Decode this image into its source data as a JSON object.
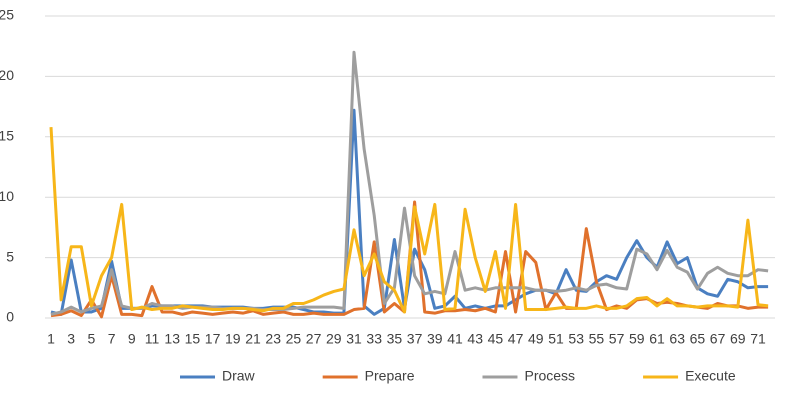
{
  "chart_data": {
    "type": "line",
    "categories": [
      "1",
      null,
      "3",
      null,
      "5",
      null,
      "7",
      null,
      "9",
      null,
      "11",
      null,
      "13",
      null,
      "15",
      null,
      "17",
      null,
      "19",
      null,
      "21",
      null,
      "23",
      null,
      "25",
      null,
      "27",
      null,
      "29",
      null,
      "31",
      null,
      "33",
      null,
      "35",
      null,
      "37",
      null,
      "39",
      null,
      "41",
      null,
      "43",
      null,
      "45",
      null,
      "47",
      null,
      "49",
      null,
      "51",
      null,
      "53",
      null,
      "55",
      null,
      "57",
      null,
      "59",
      null,
      "61",
      null,
      "63",
      null,
      "65",
      null,
      "67",
      null,
      "69",
      null,
      "71",
      null
    ],
    "series": [
      {
        "name": "Draw",
        "color": "#4a7fc1",
        "values": [
          0.5,
          0.3,
          4.8,
          0.5,
          0.5,
          0.8,
          4.7,
          0.8,
          0.8,
          0.8,
          1.0,
          1.0,
          1.0,
          1.0,
          1.0,
          1.0,
          0.9,
          0.9,
          0.9,
          0.9,
          0.8,
          0.8,
          0.9,
          0.9,
          0.9,
          0.7,
          0.5,
          0.5,
          0.4,
          0.4,
          17.2,
          1.0,
          0.3,
          0.8,
          6.5,
          0.8,
          5.7,
          4.0,
          0.8,
          1.0,
          1.8,
          0.8,
          1.0,
          0.8,
          1.0,
          1.0,
          1.5,
          2.0,
          2.3,
          2.3,
          2.0,
          4.0,
          2.3,
          2.2,
          3.0,
          3.5,
          3.2,
          5.0,
          6.4,
          5.0,
          4.2,
          6.3,
          4.5,
          5.0,
          2.5,
          2.0,
          1.8,
          3.2,
          3.0,
          2.5,
          2.6,
          2.6
        ]
      },
      {
        "name": "Prepare",
        "color": "#e0712c",
        "values": [
          0.2,
          0.3,
          0.6,
          0.2,
          1.5,
          0.1,
          3.5,
          0.3,
          0.3,
          0.2,
          2.6,
          0.5,
          0.5,
          0.3,
          0.5,
          0.4,
          0.3,
          0.4,
          0.5,
          0.4,
          0.6,
          0.3,
          0.4,
          0.5,
          0.3,
          0.3,
          0.4,
          0.3,
          0.3,
          0.3,
          0.7,
          0.8,
          6.3,
          0.5,
          1.2,
          0.5,
          9.6,
          0.5,
          0.4,
          0.6,
          0.6,
          0.7,
          0.6,
          0.8,
          0.5,
          5.5,
          0.5,
          5.5,
          4.6,
          0.7,
          2.1,
          0.8,
          0.8,
          7.4,
          3.0,
          0.7,
          1.0,
          0.8,
          1.5,
          1.6,
          1.2,
          1.3,
          1.2,
          1.0,
          0.9,
          0.8,
          1.2,
          1.0,
          1.0,
          0.8,
          0.9,
          0.9
        ]
      },
      {
        "name": "Process",
        "color": "#9e9e9e",
        "values": [
          0.3,
          0.5,
          0.9,
          0.5,
          0.8,
          1.0,
          4.0,
          1.0,
          0.8,
          0.8,
          1.2,
          1.0,
          1.0,
          0.8,
          0.9,
          0.9,
          0.9,
          0.8,
          0.8,
          0.8,
          0.8,
          0.7,
          0.7,
          0.7,
          0.8,
          0.9,
          0.9,
          0.9,
          0.9,
          0.8,
          22,
          14,
          8.5,
          1.2,
          2.5,
          9.1,
          3.5,
          2.0,
          2.2,
          2.0,
          5.5,
          2.3,
          2.5,
          2.3,
          2.5,
          2.5,
          2.5,
          2.5,
          2.3,
          2.3,
          2.2,
          2.3,
          2.5,
          2.3,
          2.7,
          2.8,
          2.5,
          2.4,
          5.7,
          5.3,
          4.0,
          5.6,
          4.2,
          3.8,
          2.4,
          3.7,
          4.2,
          3.7,
          3.5,
          3.5,
          4.0,
          3.9
        ]
      },
      {
        "name": "Execute",
        "color": "#f7b619",
        "values": [
          15.8,
          1.5,
          5.9,
          5.9,
          1.0,
          3.5,
          5.0,
          9.4,
          0.7,
          0.9,
          0.7,
          0.8,
          0.8,
          1.0,
          0.9,
          0.8,
          0.7,
          0.7,
          0.8,
          0.8,
          0.7,
          0.6,
          0.8,
          0.8,
          1.2,
          1.2,
          1.5,
          1.9,
          2.2,
          2.4,
          7.3,
          3.5,
          5.3,
          3.0,
          2.3,
          0.5,
          9.2,
          5.3,
          9.4,
          0.7,
          0.8,
          9.0,
          5.0,
          2.2,
          5.5,
          0.8,
          9.4,
          0.7,
          0.7,
          0.7,
          0.8,
          0.9,
          0.8,
          0.8,
          1.0,
          0.8,
          0.8,
          1.0,
          1.6,
          1.7,
          1.0,
          1.6,
          1.0,
          1.0,
          0.9,
          1.0,
          1.0,
          1.0,
          0.9,
          8.1,
          1.1,
          1.0
        ]
      }
    ],
    "ylim": [
      0,
      25
    ],
    "yticks": [
      0,
      5,
      10,
      15,
      20,
      25
    ],
    "grid": true,
    "legend": "bottom"
  }
}
